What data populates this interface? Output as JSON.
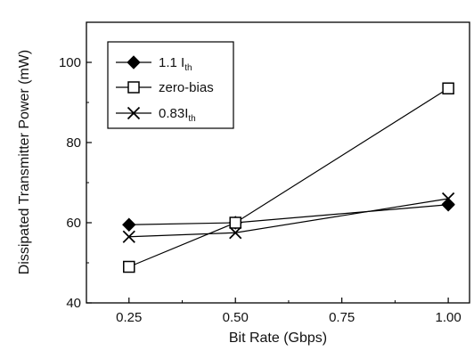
{
  "chart_data": {
    "type": "line",
    "xlabel": "Bit Rate (Gbps)",
    "ylabel": "Dissipated Transmitter Power (mW)",
    "xlim": [
      0.15,
      1.05
    ],
    "ylim": [
      40,
      110
    ],
    "xticks": [
      0.25,
      0.5,
      0.75,
      1.0
    ],
    "xtick_labels": [
      "0.25",
      "0.50",
      "0.75",
      "1.00"
    ],
    "yticks": [
      40,
      60,
      80,
      100
    ],
    "ytick_labels": [
      "40",
      "60",
      "80",
      "100"
    ],
    "grid": false,
    "legend_position": "top-left",
    "x": [
      0.25,
      0.5,
      1.0
    ],
    "series": [
      {
        "name": "1.1 I",
        "name_sub": "th",
        "marker": "filled-diamond",
        "values": [
          59.5,
          60.0,
          64.5
        ]
      },
      {
        "name": "zero-bias",
        "name_sub": "",
        "marker": "open-square",
        "values": [
          49.0,
          60.0,
          93.5
        ]
      },
      {
        "name": "0.83I",
        "name_sub": "th",
        "marker": "x-cross",
        "values": [
          56.5,
          57.5,
          66.0
        ]
      }
    ]
  }
}
